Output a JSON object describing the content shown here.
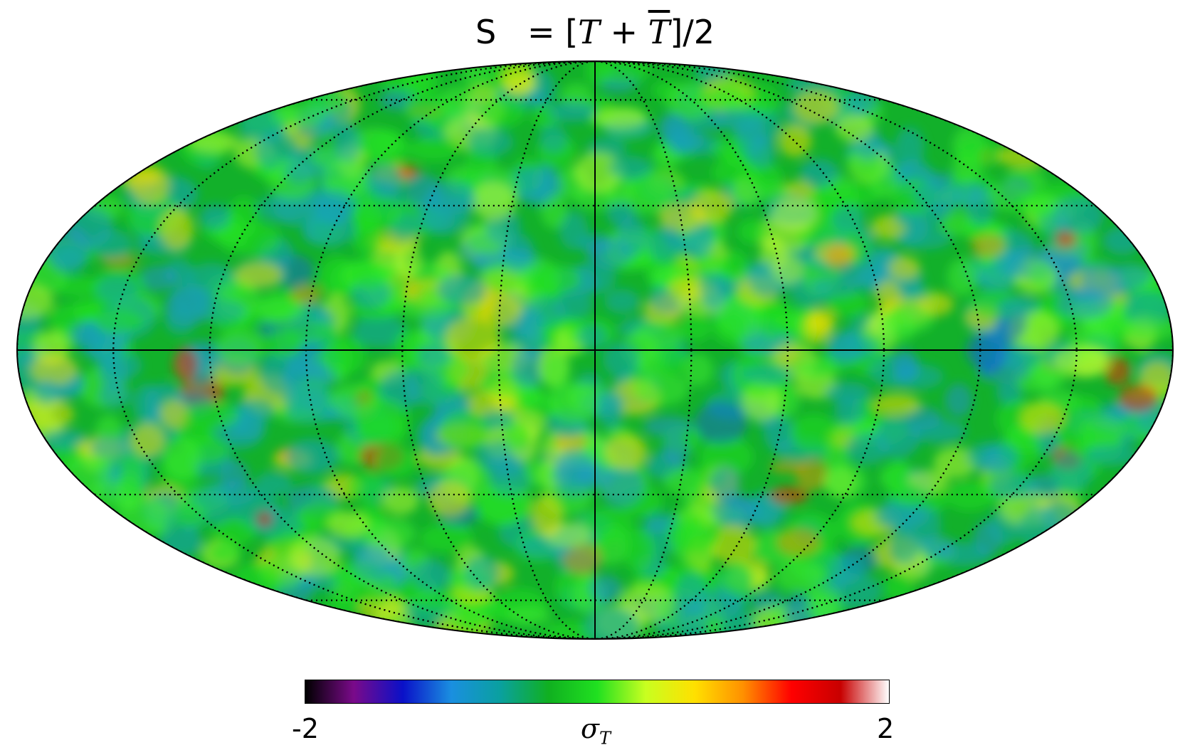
{
  "title": {
    "prefix": "S",
    "expr_open": "= [",
    "var1": "T",
    "plus": " + ",
    "var2": "T",
    "expr_close": "]/2"
  },
  "map": {
    "projection": "mollweide",
    "graticule": "dotted",
    "axes_lines": "solid equator and central meridian"
  },
  "colorbar": {
    "min_label": "-2",
    "max_label": "2",
    "label_symbol": "σ",
    "label_sub": "T",
    "colormap": [
      "#000000",
      "#7a0a8a",
      "#0a10c8",
      "#1a8fe0",
      "#0aa0a0",
      "#10b020",
      "#20e020",
      "#c8ff20",
      "#ffe000",
      "#ff9000",
      "#ff0000",
      "#c80000",
      "#ffffff"
    ],
    "range": [
      -2,
      2
    ]
  }
}
